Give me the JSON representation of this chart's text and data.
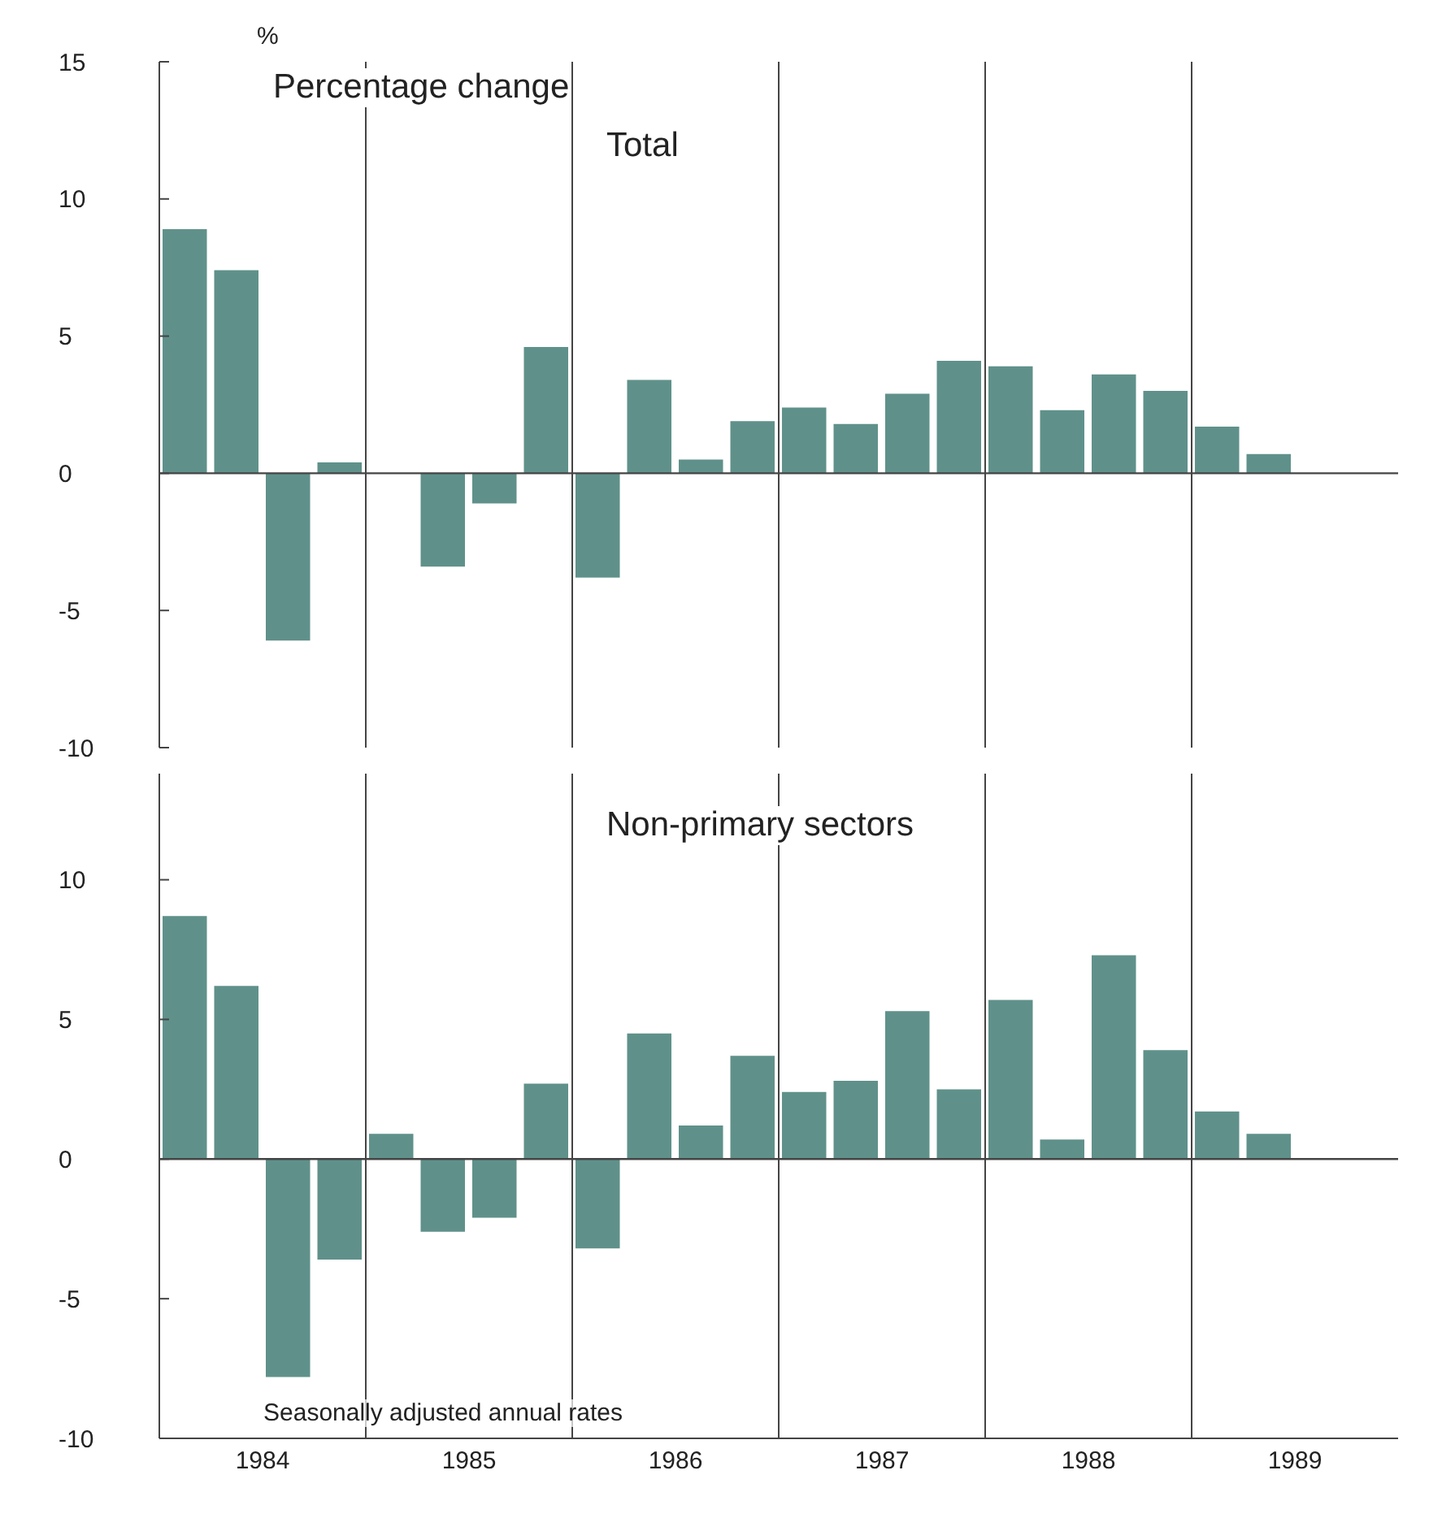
{
  "chart_data": [
    {
      "type": "bar",
      "title": "Total",
      "subtitle": "Percentage change",
      "ylabel": "%",
      "x": [
        1984.125,
        1984.375,
        1984.625,
        1984.875,
        1985.125,
        1985.375,
        1985.625,
        1985.875,
        1986.125,
        1986.375,
        1986.625,
        1986.875,
        1987.125,
        1987.375,
        1987.625,
        1987.875,
        1988.125,
        1988.375,
        1988.625,
        1988.875,
        1989.125,
        1989.375
      ],
      "values": [
        8.9,
        7.4,
        -6.1,
        0.4,
        0,
        -3.4,
        -1.1,
        4.6,
        -3.8,
        3.4,
        0.5,
        1.9,
        2.4,
        1.8,
        2.9,
        4.1,
        3.9,
        2.3,
        3.6,
        3.0,
        1.7,
        0.7
      ],
      "color": "#5f918a",
      "xlim": [
        1984,
        1990
      ],
      "ylim": [
        -10,
        15
      ],
      "yticks": [
        -10,
        -5,
        0,
        5,
        10,
        15
      ],
      "tick_labels": "y",
      "ref_lines": [
        {
          "axis": "y",
          "value": 0,
          "color": "#444444"
        },
        {
          "axis": "x",
          "value": 1985,
          "color": "#444444"
        },
        {
          "axis": "x",
          "value": 1986,
          "color": "#444444"
        },
        {
          "axis": "x",
          "value": 1987,
          "color": "#444444"
        },
        {
          "axis": "x",
          "value": 1988,
          "color": "#444444"
        },
        {
          "axis": "x",
          "value": 1989,
          "color": "#444444"
        }
      ]
    },
    {
      "type": "bar",
      "title": "Non-primary sectors",
      "annotations": [
        "Seasonally adjusted annual rates"
      ],
      "x": [
        1984.125,
        1984.375,
        1984.625,
        1984.875,
        1985.125,
        1985.375,
        1985.625,
        1985.875,
        1986.125,
        1986.375,
        1986.625,
        1986.875,
        1987.125,
        1987.375,
        1987.625,
        1987.875,
        1988.125,
        1988.375,
        1988.625,
        1988.875,
        1989.125,
        1989.375
      ],
      "values": [
        8.7,
        6.2,
        -7.8,
        -3.6,
        0.9,
        -2.6,
        -2.1,
        2.7,
        -3.2,
        4.5,
        1.2,
        3.7,
        2.4,
        2.8,
        5.3,
        2.5,
        5.7,
        0.7,
        7.3,
        3.9,
        1.7,
        0.9
      ],
      "color": "#5f918a",
      "xlim": [
        1984,
        1990
      ],
      "xticks": [
        {
          "value": 1984.5,
          "label": "1984"
        },
        {
          "value": 1985.5,
          "label": "1985"
        },
        {
          "value": 1986.5,
          "label": "1986"
        },
        {
          "value": 1987.5,
          "label": "1987"
        },
        {
          "value": 1988.5,
          "label": "1988"
        },
        {
          "value": 1989.5,
          "label": "1989"
        }
      ],
      "ylim": [
        -10,
        13.8
      ],
      "yticks": [
        -10,
        -5,
        0,
        5,
        10
      ],
      "ref_lines": [
        {
          "axis": "y",
          "value": 0,
          "color": "#444444"
        },
        {
          "axis": "x",
          "value": 1985,
          "color": "#444444"
        },
        {
          "axis": "x",
          "value": 1986,
          "color": "#444444"
        },
        {
          "axis": "x",
          "value": 1987,
          "color": "#444444"
        },
        {
          "axis": "x",
          "value": 1988,
          "color": "#444444"
        },
        {
          "axis": "x",
          "value": 1989,
          "color": "#444444"
        }
      ]
    }
  ]
}
